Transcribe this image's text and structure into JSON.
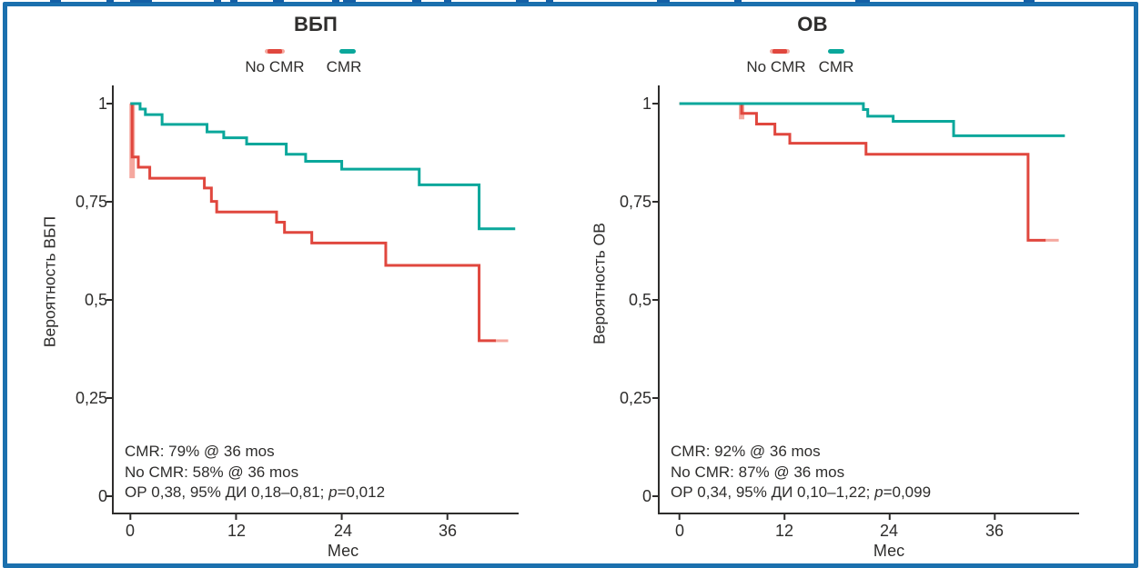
{
  "figure": {
    "border_color": "#1b70ae",
    "background": "#ffffff",
    "teal_color": "#0aa79b",
    "red_color": "#e0473e",
    "halo_color": "#f5a89f"
  },
  "chart_data": [
    {
      "id": "pfs",
      "type": "line",
      "subtype": "kaplan-meier-step",
      "title": "ВБП",
      "xlabel": "Мес",
      "ylabel": "Вероятность ВБП",
      "xlim": [
        0,
        44
      ],
      "ylim": [
        0,
        1
      ],
      "grid": false,
      "legend_position": "top",
      "x_ticks": [
        {
          "value": 0,
          "label": "0"
        },
        {
          "value": 12,
          "label": "12"
        },
        {
          "value": 24,
          "label": "24"
        },
        {
          "value": 36,
          "label": "36"
        }
      ],
      "y_ticks": [
        {
          "value": 1,
          "label": "1"
        },
        {
          "value": 0.75,
          "label": "0,75"
        },
        {
          "value": 0.5,
          "label": "0,5"
        },
        {
          "value": 0.25,
          "label": "0,25"
        },
        {
          "value": 0,
          "label": "0"
        }
      ],
      "legend": [
        {
          "label": "No CMR",
          "color": "#e0473e"
        },
        {
          "label": "CMR",
          "color": "#0aa79b"
        }
      ],
      "series": [
        {
          "name": "No CMR",
          "color": "#e0473e",
          "halo_color": "#f5a89f",
          "points": [
            [
              0,
              1
            ],
            [
              0.2,
              0.864
            ],
            [
              0.9,
              0.838
            ],
            [
              2.2,
              0.81
            ],
            [
              8.4,
              0.785
            ],
            [
              9.2,
              0.751
            ],
            [
              9.8,
              0.724
            ],
            [
              16.6,
              0.698
            ],
            [
              17.5,
              0.672
            ],
            [
              20.6,
              0.645
            ],
            [
              29,
              0.588
            ],
            [
              39.6,
              0.396
            ]
          ],
          "end": 42.9,
          "tail_light_from": 41.5,
          "drop_halo": {
            "t": 0.2,
            "from": 1.0,
            "to": 0.81
          }
        },
        {
          "name": "CMR",
          "color": "#0aa79b",
          "points": [
            [
              0,
              1
            ],
            [
              1.1,
              0.986
            ],
            [
              1.7,
              0.972
            ],
            [
              3.6,
              0.947
            ],
            [
              8.7,
              0.928
            ],
            [
              10.6,
              0.913
            ],
            [
              13.2,
              0.897
            ],
            [
              17.7,
              0.871
            ],
            [
              19.9,
              0.853
            ],
            [
              24,
              0.833
            ],
            [
              32.8,
              0.793
            ],
            [
              39.6,
              0.681
            ]
          ],
          "end": 43.7
        }
      ],
      "annotation": {
        "line1": "CMR: 79% @ 36 mos",
        "line2": "No CMR: 58% @ 36 mos",
        "stats_prefix": "ОР 0,38, 95% ДИ 0,18–0,81; ",
        "stats_p": "p",
        "stats_suffix": "=0,012"
      }
    },
    {
      "id": "os",
      "type": "line",
      "subtype": "kaplan-meier-step",
      "title": "ОВ",
      "xlabel": "Мес",
      "ylabel": "Вероятность ОВ",
      "xlim": [
        0,
        44
      ],
      "ylim": [
        0,
        1
      ],
      "grid": false,
      "legend_position": "top",
      "x_ticks": [
        {
          "value": 0,
          "label": "0"
        },
        {
          "value": 12,
          "label": "12"
        },
        {
          "value": 24,
          "label": "24"
        },
        {
          "value": 36,
          "label": "36"
        }
      ],
      "y_ticks": [
        {
          "value": 1,
          "label": "1"
        },
        {
          "value": 0.75,
          "label": "0,75"
        },
        {
          "value": 0.5,
          "label": "0,5"
        },
        {
          "value": 0.25,
          "label": "0,25"
        },
        {
          "value": 0,
          "label": "0"
        }
      ],
      "legend": [
        {
          "label": "No CMR",
          "color": "#e0473e"
        },
        {
          "label": "CMR",
          "color": "#0aa79b"
        }
      ],
      "series": [
        {
          "name": "No CMR",
          "color": "#e0473e",
          "halo_color": "#f5a89f",
          "points": [
            [
              0,
              1
            ],
            [
              7.1,
              0.975
            ],
            [
              8.8,
              0.948
            ],
            [
              10.9,
              0.922
            ],
            [
              12.6,
              0.899
            ],
            [
              21.3,
              0.871
            ],
            [
              39.8,
              0.652
            ]
          ],
          "end": 43.3,
          "tail_light_from": 41.8,
          "drop_halo": {
            "t": 7.1,
            "from": 1.0,
            "to": 0.96
          }
        },
        {
          "name": "CMR",
          "color": "#0aa79b",
          "points": [
            [
              0,
              1
            ],
            [
              21,
              0.985
            ],
            [
              21.5,
              0.968
            ],
            [
              24.4,
              0.955
            ],
            [
              31.3,
              0.918
            ]
          ],
          "end": 44
        }
      ],
      "annotation": {
        "line1": "CMR: 92% @ 36 mos",
        "line2": "No CMR: 87% @ 36 mos",
        "stats_prefix": "ОР 0,34, 95% ДИ 0,10–1,22; ",
        "stats_p": "p",
        "stats_suffix": "=0,099"
      }
    }
  ]
}
